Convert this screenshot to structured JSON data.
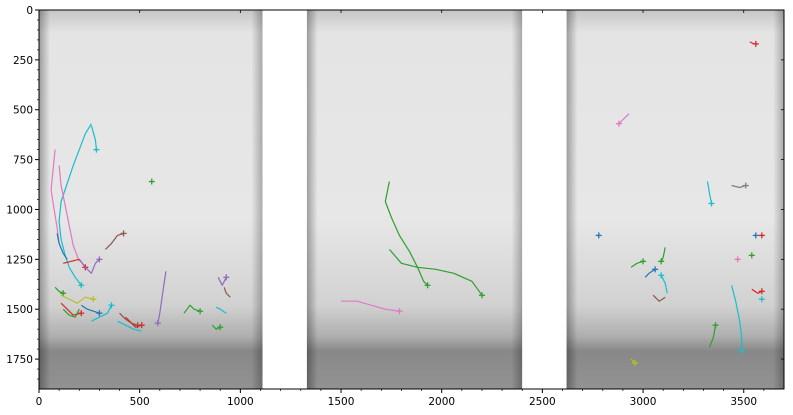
{
  "chart_data": {
    "type": "scatter",
    "title": "",
    "xlabel": "",
    "ylabel": "",
    "xlim": [
      0,
      3700
    ],
    "ylim": [
      1900,
      0
    ],
    "y_inverted": true,
    "grid": false,
    "x_ticks": [
      {
        "value": 0,
        "label": "0"
      },
      {
        "value": 500,
        "label": "500"
      },
      {
        "value": 1000,
        "label": "1000"
      },
      {
        "value": 1500,
        "label": "1500"
      },
      {
        "value": 2000,
        "label": "2000"
      },
      {
        "value": 2500,
        "label": "2500"
      },
      {
        "value": 3000,
        "label": "3000"
      },
      {
        "value": 3500,
        "label": "3500"
      }
    ],
    "y_ticks": [
      {
        "value": 0,
        "label": "0"
      },
      {
        "value": 250,
        "label": "250"
      },
      {
        "value": 500,
        "label": "500"
      },
      {
        "value": 750,
        "label": "750"
      },
      {
        "value": 1000,
        "label": "1000"
      },
      {
        "value": 1250,
        "label": "1250"
      },
      {
        "value": 1500,
        "label": "1500"
      },
      {
        "value": 1750,
        "label": "1750"
      }
    ],
    "background": {
      "description_colors": {
        "bright": "#f2f2f2",
        "mid": "#cfcfcf",
        "dark": "#8a8a8a",
        "separator": "#ffffff"
      },
      "panels": [
        {
          "x0": 0,
          "x1": 1110
        },
        {
          "x0": 1330,
          "x1": 2400
        },
        {
          "x0": 2620,
          "x1": 3700
        }
      ],
      "separators": [
        {
          "x0": 1110,
          "x1": 1330
        },
        {
          "x0": 2400,
          "x1": 2620
        }
      ]
    },
    "series": [
      {
        "color": "#17becf",
        "points": [
          [
            260,
            570
          ],
          [
            230,
            620
          ],
          [
            200,
            700
          ],
          [
            170,
            780
          ],
          [
            140,
            870
          ],
          [
            110,
            960
          ],
          [
            100,
            1060
          ],
          [
            110,
            1150
          ],
          [
            130,
            1230
          ],
          [
            150,
            1290
          ],
          [
            180,
            1340
          ],
          [
            210,
            1380
          ]
        ],
        "marker_end": true
      },
      {
        "color": "#17becf",
        "points": [
          [
            260,
            580
          ],
          [
            280,
            650
          ],
          [
            285,
            700
          ]
        ],
        "marker_end": true
      },
      {
        "color": "#e377c2",
        "points": [
          [
            80,
            700
          ],
          [
            70,
            800
          ],
          [
            60,
            900
          ],
          [
            75,
            1000
          ],
          [
            90,
            1090
          ],
          [
            100,
            1170
          ]
        ],
        "marker_end": false
      },
      {
        "color": "#e377c2",
        "points": [
          [
            100,
            780
          ],
          [
            110,
            880
          ],
          [
            130,
            980
          ],
          [
            150,
            1080
          ],
          [
            170,
            1180
          ],
          [
            200,
            1260
          ]
        ],
        "marker_end": false
      },
      {
        "color": "#1f77b4",
        "points": [
          [
            90,
            1120
          ],
          [
            100,
            1170
          ],
          [
            120,
            1220
          ],
          [
            140,
            1250
          ]
        ],
        "marker_end": false
      },
      {
        "color": "#d62728",
        "points": [
          [
            120,
            1270
          ],
          [
            160,
            1260
          ],
          [
            200,
            1250
          ],
          [
            230,
            1290
          ]
        ],
        "marker_end": true
      },
      {
        "color": "#9467bd",
        "points": [
          [
            200,
            1250
          ],
          [
            230,
            1290
          ],
          [
            260,
            1320
          ],
          [
            280,
            1270
          ],
          [
            300,
            1250
          ]
        ],
        "marker_end": true
      },
      {
        "color": "#8c564b",
        "points": [
          [
            330,
            1200
          ],
          [
            360,
            1170
          ],
          [
            390,
            1130
          ],
          [
            420,
            1120
          ]
        ],
        "marker_end": true
      },
      {
        "color": "#2ca02c",
        "points": [
          [
            80,
            1390
          ],
          [
            100,
            1410
          ],
          [
            120,
            1420
          ]
        ],
        "marker_end": true
      },
      {
        "color": "#bcbd22",
        "points": [
          [
            110,
            1430
          ],
          [
            150,
            1450
          ],
          [
            190,
            1470
          ],
          [
            230,
            1440
          ],
          [
            270,
            1450
          ]
        ],
        "marker_end": true
      },
      {
        "color": "#d62728",
        "points": [
          [
            110,
            1470
          ],
          [
            140,
            1500
          ],
          [
            170,
            1530
          ],
          [
            210,
            1520
          ]
        ],
        "marker_end": true
      },
      {
        "color": "#2ca02c",
        "points": [
          [
            120,
            1500
          ],
          [
            150,
            1530
          ],
          [
            180,
            1540
          ],
          [
            200,
            1500
          ]
        ],
        "marker_end": false
      },
      {
        "color": "#1f77b4",
        "points": [
          [
            210,
            1480
          ],
          [
            240,
            1500
          ],
          [
            270,
            1510
          ],
          [
            300,
            1520
          ]
        ],
        "marker_end": true
      },
      {
        "color": "#17becf",
        "points": [
          [
            260,
            1560
          ],
          [
            300,
            1540
          ],
          [
            340,
            1520
          ],
          [
            360,
            1480
          ]
        ],
        "marker_end": true
      },
      {
        "color": "#8c564b",
        "points": [
          [
            400,
            1520
          ],
          [
            430,
            1550
          ],
          [
            460,
            1570
          ],
          [
            490,
            1580
          ]
        ],
        "marker_end": true
      },
      {
        "color": "#d62728",
        "points": [
          [
            430,
            1540
          ],
          [
            460,
            1570
          ],
          [
            480,
            1590
          ],
          [
            510,
            1580
          ]
        ],
        "marker_end": true
      },
      {
        "color": "#17becf",
        "points": [
          [
            390,
            1560
          ],
          [
            430,
            1580
          ],
          [
            470,
            1600
          ],
          [
            510,
            1610
          ]
        ],
        "marker_end": false
      },
      {
        "color": "#9467bd",
        "points": [
          [
            630,
            1310
          ],
          [
            620,
            1380
          ],
          [
            610,
            1450
          ],
          [
            600,
            1520
          ],
          [
            590,
            1570
          ]
        ],
        "marker_end": true
      },
      {
        "color": "#2ca02c",
        "points": [
          [
            720,
            1520
          ],
          [
            750,
            1480
          ],
          [
            770,
            1500
          ],
          [
            800,
            1510
          ]
        ],
        "marker_end": true
      },
      {
        "color": "#9467bd",
        "points": [
          [
            890,
            1340
          ],
          [
            910,
            1380
          ],
          [
            930,
            1340
          ]
        ],
        "marker_end": true
      },
      {
        "color": "#8c564b",
        "points": [
          [
            920,
            1390
          ],
          [
            930,
            1420
          ],
          [
            950,
            1440
          ]
        ],
        "marker_end": false
      },
      {
        "color": "#17becf",
        "points": [
          [
            880,
            1490
          ],
          [
            900,
            1500
          ],
          [
            930,
            1520
          ]
        ],
        "marker_end": false
      },
      {
        "color": "#2ca02c",
        "points": [
          [
            860,
            1580
          ],
          [
            880,
            1600
          ],
          [
            900,
            1590
          ]
        ],
        "marker_end": true
      },
      {
        "color": "#2ca02c",
        "points": [
          [
            560,
            860
          ]
        ],
        "marker_end": true
      },
      {
        "color": "#2ca02c",
        "points": [
          [
            1740,
            860
          ],
          [
            1720,
            960
          ],
          [
            1750,
            1040
          ],
          [
            1790,
            1130
          ],
          [
            1840,
            1210
          ],
          [
            1880,
            1290
          ],
          [
            1910,
            1360
          ],
          [
            1930,
            1380
          ]
        ],
        "marker_end": true
      },
      {
        "color": "#2ca02c",
        "points": [
          [
            1740,
            1200
          ],
          [
            1800,
            1270
          ],
          [
            1880,
            1290
          ],
          [
            1970,
            1300
          ],
          [
            2060,
            1320
          ],
          [
            2150,
            1360
          ],
          [
            2200,
            1430
          ]
        ],
        "marker_end": true
      },
      {
        "color": "#e377c2",
        "points": [
          [
            1500,
            1460
          ],
          [
            1580,
            1460
          ],
          [
            1650,
            1480
          ],
          [
            1720,
            1500
          ],
          [
            1790,
            1510
          ]
        ],
        "marker_end": true
      },
      {
        "color": "#e377c2",
        "points": [
          [
            2930,
            520
          ],
          [
            2900,
            550
          ],
          [
            2880,
            570
          ]
        ],
        "marker_end": true
      },
      {
        "color": "#d62728",
        "points": [
          [
            3530,
            160
          ],
          [
            3550,
            170
          ],
          [
            3560,
            170
          ]
        ],
        "marker_end": true
      },
      {
        "color": "#1f77b4",
        "points": [
          [
            2780,
            1130
          ]
        ],
        "marker_end": true
      },
      {
        "color": "#17becf",
        "points": [
          [
            3320,
            860
          ],
          [
            3330,
            920
          ],
          [
            3340,
            970
          ]
        ],
        "marker_end": true
      },
      {
        "color": "#7f7f7f",
        "points": [
          [
            3440,
            880
          ],
          [
            3480,
            890
          ],
          [
            3510,
            880
          ]
        ],
        "marker_end": true
      },
      {
        "color": "#2ca02c",
        "points": [
          [
            3110,
            1190
          ],
          [
            3100,
            1240
          ],
          [
            3090,
            1260
          ]
        ],
        "marker_end": true
      },
      {
        "color": "#2ca02c",
        "points": [
          [
            2940,
            1290
          ],
          [
            2970,
            1270
          ],
          [
            3000,
            1260
          ]
        ],
        "marker_end": true
      },
      {
        "color": "#1f77b4",
        "points": [
          [
            3010,
            1340
          ],
          [
            3030,
            1320
          ],
          [
            3060,
            1300
          ]
        ],
        "marker_end": true
      },
      {
        "color": "#17becf",
        "points": [
          [
            3120,
            1420
          ],
          [
            3110,
            1370
          ],
          [
            3090,
            1330
          ]
        ],
        "marker_end": true
      },
      {
        "color": "#8c564b",
        "points": [
          [
            3050,
            1430
          ],
          [
            3080,
            1460
          ],
          [
            3110,
            1440
          ]
        ],
        "marker_end": false
      },
      {
        "color": "#1f77b4",
        "points": [
          [
            3560,
            1130
          ]
        ],
        "marker_end": true
      },
      {
        "color": "#d62728",
        "points": [
          [
            3590,
            1130
          ]
        ],
        "marker_end": true
      },
      {
        "color": "#e377c2",
        "points": [
          [
            3470,
            1250
          ]
        ],
        "marker_end": true
      },
      {
        "color": "#2ca02c",
        "points": [
          [
            3540,
            1230
          ]
        ],
        "marker_end": true
      },
      {
        "color": "#d62728",
        "points": [
          [
            3540,
            1400
          ],
          [
            3570,
            1420
          ],
          [
            3590,
            1410
          ]
        ],
        "marker_end": true
      },
      {
        "color": "#17becf",
        "points": [
          [
            3440,
            1380
          ],
          [
            3460,
            1460
          ],
          [
            3480,
            1560
          ],
          [
            3490,
            1640
          ],
          [
            3490,
            1710
          ]
        ],
        "marker_end": true
      },
      {
        "color": "#17becf",
        "points": [
          [
            3590,
            1450
          ]
        ],
        "marker_end": true
      },
      {
        "color": "#2ca02c",
        "points": [
          [
            3330,
            1690
          ],
          [
            3350,
            1640
          ],
          [
            3360,
            1580
          ]
        ],
        "marker_end": true
      },
      {
        "color": "#bcbd22",
        "points": [
          [
            2940,
            1750
          ],
          [
            2960,
            1770
          ]
        ],
        "marker_end": true
      }
    ]
  }
}
